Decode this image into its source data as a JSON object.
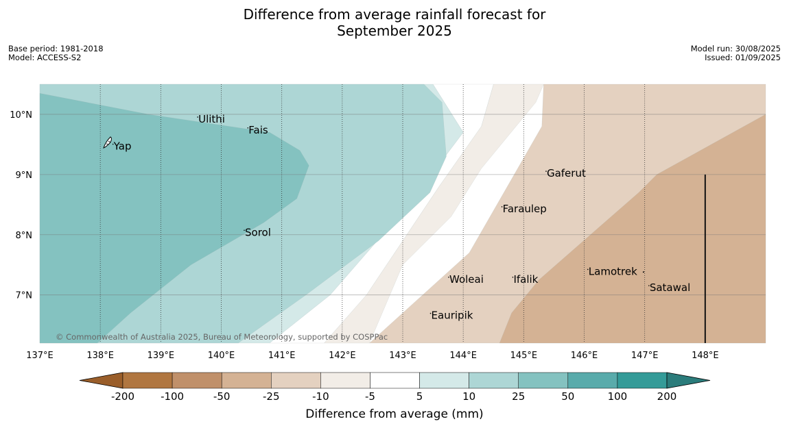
{
  "title_line1": "Difference from average rainfall forecast for",
  "title_line2": "September 2025",
  "meta_left": [
    "Base period: 1981-2018",
    "Model: ACCESS-S2"
  ],
  "meta_right": [
    "Model run: 30/08/2025",
    "Issued: 01/09/2025"
  ],
  "copyright": "© Commonwealth of Australia 2025, Bureau of Meteorology, supported by COSPPac",
  "map": {
    "lon_range": [
      137,
      149
    ],
    "lat_range": [
      6.2,
      10.5
    ],
    "lon_ticks": [
      {
        "v": 137,
        "label": "137°E"
      },
      {
        "v": 138,
        "label": "138°E"
      },
      {
        "v": 139,
        "label": "139°E"
      },
      {
        "v": 140,
        "label": "140°E"
      },
      {
        "v": 141,
        "label": "141°E"
      },
      {
        "v": 142,
        "label": "142°E"
      },
      {
        "v": 143,
        "label": "143°E"
      },
      {
        "v": 144,
        "label": "144°E"
      },
      {
        "v": 145,
        "label": "145°E"
      },
      {
        "v": 146,
        "label": "146°E"
      },
      {
        "v": 147,
        "label": "147°E"
      },
      {
        "v": 148,
        "label": "148°E"
      }
    ],
    "lat_ticks": [
      {
        "v": 10,
        "label": "10°N"
      },
      {
        "v": 9,
        "label": "9°N"
      },
      {
        "v": 8,
        "label": "8°N"
      },
      {
        "v": 7,
        "label": "7°N"
      }
    ],
    "grid_lon": [
      138,
      139,
      140,
      141,
      142,
      143,
      144,
      145,
      146,
      147
    ],
    "grid_lat": [
      10,
      9,
      8,
      7
    ],
    "boundary_line": {
      "lon": 148,
      "lat": [
        6.2,
        9.0
      ]
    },
    "places": [
      {
        "name": "Ulithi",
        "lon": 139.61,
        "lat": 9.92
      },
      {
        "name": "Fais",
        "lon": 140.44,
        "lat": 9.74
      },
      {
        "name": "Yap",
        "lon": 138.21,
        "lat": 9.47
      },
      {
        "name": "Gaferut",
        "lon": 145.37,
        "lat": 9.02
      },
      {
        "name": "Faraulep",
        "lon": 144.64,
        "lat": 8.43
      },
      {
        "name": "Sorol",
        "lon": 140.38,
        "lat": 8.04
      },
      {
        "name": "Lamotrek",
        "lon": 146.06,
        "lat": 7.39
      },
      {
        "name": "Woleai",
        "lon": 143.76,
        "lat": 7.26
      },
      {
        "name": "Ifalik",
        "lon": 144.82,
        "lat": 7.26
      },
      {
        "name": "Satawal",
        "lon": 147.07,
        "lat": 7.12
      },
      {
        "name": "Eauripik",
        "lon": 143.46,
        "lat": 6.66
      }
    ],
    "regions": [
      {
        "category": "-25 to -10",
        "color": "#e4d1c0",
        "poly": [
          [
            145.33,
            10.5
          ],
          [
            149,
            10.5
          ],
          [
            149,
            6.2
          ],
          [
            142.45,
            6.2
          ],
          [
            144.1,
            7.7
          ],
          [
            145.3,
            9.8
          ]
        ]
      },
      {
        "category": "-50 to -25",
        "color": "#d4b294",
        "poly": [
          [
            149,
            10.0
          ],
          [
            147.2,
            9.0
          ],
          [
            146.9,
            8.7
          ],
          [
            145.25,
            7.25
          ],
          [
            144.8,
            6.7
          ],
          [
            144.6,
            6.2
          ],
          [
            149,
            6.2
          ]
        ]
      },
      {
        "category": "-10 to -5",
        "color": "#f2ede7",
        "poly": [
          [
            144.5,
            10.5
          ],
          [
            145.33,
            10.5
          ],
          [
            145.2,
            10.2
          ],
          [
            144.3,
            9.1
          ],
          [
            143.8,
            8.3
          ],
          [
            143.0,
            7.5
          ],
          [
            142.45,
            6.2
          ],
          [
            141.7,
            6.2
          ],
          [
            142.4,
            7.0
          ],
          [
            143.6,
            8.8
          ],
          [
            144.3,
            9.8
          ]
        ]
      },
      {
        "category": "-5 to 5",
        "color": "#ffffff",
        "poly": [
          [
            143.5,
            10.5
          ],
          [
            144.5,
            10.5
          ],
          [
            144.3,
            9.8
          ],
          [
            143.6,
            8.8
          ],
          [
            142.4,
            7.0
          ],
          [
            141.7,
            6.2
          ],
          [
            140.8,
            6.2
          ],
          [
            141.8,
            7.0
          ],
          [
            143.1,
            8.5
          ],
          [
            144.0,
            9.7
          ]
        ]
      },
      {
        "category": "5 to 10",
        "color": "#d4e9e8",
        "poly": [
          [
            137,
            10.5
          ],
          [
            143.5,
            10.5
          ],
          [
            144.0,
            9.7
          ],
          [
            143.1,
            8.5
          ],
          [
            141.8,
            7.0
          ],
          [
            140.8,
            6.2
          ],
          [
            137,
            6.2
          ]
        ]
      },
      {
        "category": "10 to 25",
        "color": "#add6d5",
        "poly": [
          [
            137,
            10.5
          ],
          [
            143.35,
            10.5
          ],
          [
            143.65,
            10.2
          ],
          [
            143.72,
            9.3
          ],
          [
            143.45,
            8.7
          ],
          [
            142.6,
            7.9
          ],
          [
            141.4,
            7.0
          ],
          [
            140.28,
            6.2
          ],
          [
            137,
            6.2
          ]
        ]
      },
      {
        "category": "25 to 50",
        "color": "#84c2c0",
        "poly": [
          [
            137,
            10.35
          ],
          [
            138.8,
            10.0
          ],
          [
            140.8,
            9.7
          ],
          [
            141.3,
            9.4
          ],
          [
            141.45,
            9.15
          ],
          [
            141.25,
            8.6
          ],
          [
            140.7,
            8.2
          ],
          [
            139.5,
            7.5
          ],
          [
            138.5,
            6.7
          ],
          [
            137.95,
            6.2
          ],
          [
            137,
            6.2
          ]
        ]
      }
    ]
  },
  "colorbar": {
    "ticks": [
      "-200",
      "-100",
      "-50",
      "-25",
      "-10",
      "-5",
      "5",
      "10",
      "25",
      "50",
      "100",
      "200"
    ],
    "colors": [
      "#b07640",
      "#c0906a",
      "#d4b294",
      "#e4d1c0",
      "#f2ede7",
      "#ffffff",
      "#d4e9e8",
      "#add6d5",
      "#84c2c0",
      "#59abab",
      "#349b98"
    ],
    "extend_low_color": "#9a5e2a",
    "extend_high_color": "#2b7c7b",
    "label": "Difference from average (mm)"
  }
}
